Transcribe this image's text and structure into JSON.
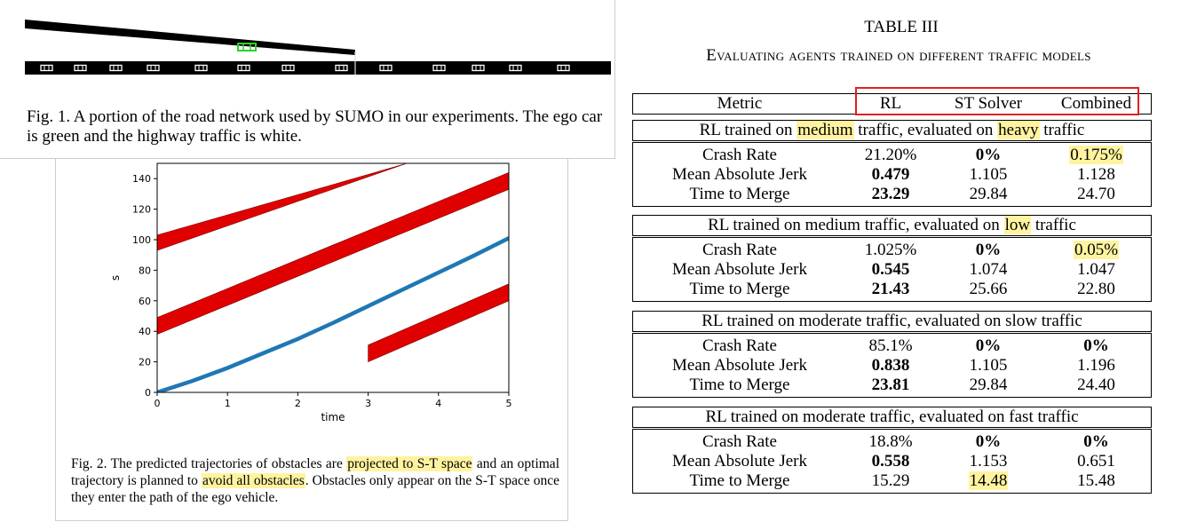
{
  "fig1": {
    "caption": "Fig. 1.   A portion of the road network used by SUMO in our experiments. The ego car is green and the highway traffic is white."
  },
  "fig2": {
    "caption_a": "Fig. 2.   The predicted trajectories of obstacles are ",
    "caption_hl1": "projected to S-T space",
    "caption_b": " and an optimal trajectory is planned to ",
    "caption_hl2": "avoid all obstacles",
    "caption_c": ". Obstacles only appear on the S-T space once they enter the path of the ego vehicle.",
    "chart_data": {
      "type": "line",
      "xlabel": "time",
      "ylabel": "s",
      "xlim": [
        0,
        5
      ],
      "ylim": [
        0,
        150
      ],
      "xticks": [
        0,
        1,
        2,
        3,
        4,
        5
      ],
      "yticks": [
        0,
        20,
        40,
        60,
        80,
        100,
        120,
        140
      ],
      "trajectory": {
        "color": "#1f77b4",
        "x": [
          0,
          0.5,
          1,
          1.5,
          2,
          2.5,
          3,
          3.5,
          4,
          4.5,
          5
        ],
        "y": [
          0,
          7.5,
          16,
          25.5,
          35,
          45.5,
          56.5,
          67.5,
          78.5,
          89.5,
          101
        ]
      },
      "obstacles": [
        {
          "color": "#e00000",
          "x": [
            0,
            3.55
          ],
          "y_lower": [
            93,
            150
          ],
          "y_upper": [
            103,
            150
          ]
        },
        {
          "color": "#e00000",
          "x": [
            0,
            5
          ],
          "y_lower": [
            38,
            133
          ],
          "y_upper": [
            49,
            144
          ]
        },
        {
          "color": "#e00000",
          "x": [
            3,
            5
          ],
          "y_lower": [
            20,
            60
          ],
          "y_upper": [
            31,
            71
          ]
        }
      ]
    }
  },
  "table": {
    "title": "TABLE III",
    "subtitle": "Evaluating agents trained on different traffic models",
    "header": {
      "metric": "Metric",
      "rl": "RL",
      "st": "ST Solver",
      "combined": "Combined"
    },
    "groups": [
      {
        "title_parts": [
          "RL trained on ",
          "medium",
          " traffic, evaluated on ",
          "heavy",
          " traffic"
        ],
        "rows": [
          {
            "metric": "Crash Rate",
            "rl": "21.20%",
            "st": "0%",
            "combined": "0.175%"
          },
          {
            "metric": "Mean Absolute Jerk",
            "rl": "0.479",
            "st": "1.105",
            "combined": "1.128"
          },
          {
            "metric": "Time to Merge",
            "rl": "23.29",
            "st": "29.84",
            "combined": "24.70"
          }
        ]
      },
      {
        "title_parts": [
          "RL trained on medium traffic, evaluated on ",
          "low",
          " traffic"
        ],
        "rows": [
          {
            "metric": "Crash Rate",
            "rl": "1.025%",
            "st": "0%",
            "combined": "0.05%"
          },
          {
            "metric": "Mean Absolute Jerk",
            "rl": "0.545",
            "st": "1.074",
            "combined": "1.047"
          },
          {
            "metric": "Time to Merge",
            "rl": "21.43",
            "st": "25.66",
            "combined": "22.80"
          }
        ]
      },
      {
        "title_parts": [
          "RL trained on moderate traffic, evaluated on slow traffic"
        ],
        "rows": [
          {
            "metric": "Crash Rate",
            "rl": "85.1%",
            "st": "0%",
            "combined": "0%"
          },
          {
            "metric": "Mean Absolute Jerk",
            "rl": "0.838",
            "st": "1.105",
            "combined": "1.196"
          },
          {
            "metric": "Time to Merge",
            "rl": "23.81",
            "st": "29.84",
            "combined": "24.40"
          }
        ]
      },
      {
        "title_parts": [
          "RL trained on moderate traffic, evaluated on fast traffic"
        ],
        "rows": [
          {
            "metric": "Crash Rate",
            "rl": "18.8%",
            "st": "0%",
            "combined": "0%"
          },
          {
            "metric": "Mean Absolute Jerk",
            "rl": "0.558",
            "st": "1.153",
            "combined": "0.651"
          },
          {
            "metric": "Time to Merge",
            "rl": "15.29",
            "st": "14.48",
            "combined": "15.48"
          }
        ]
      }
    ]
  }
}
